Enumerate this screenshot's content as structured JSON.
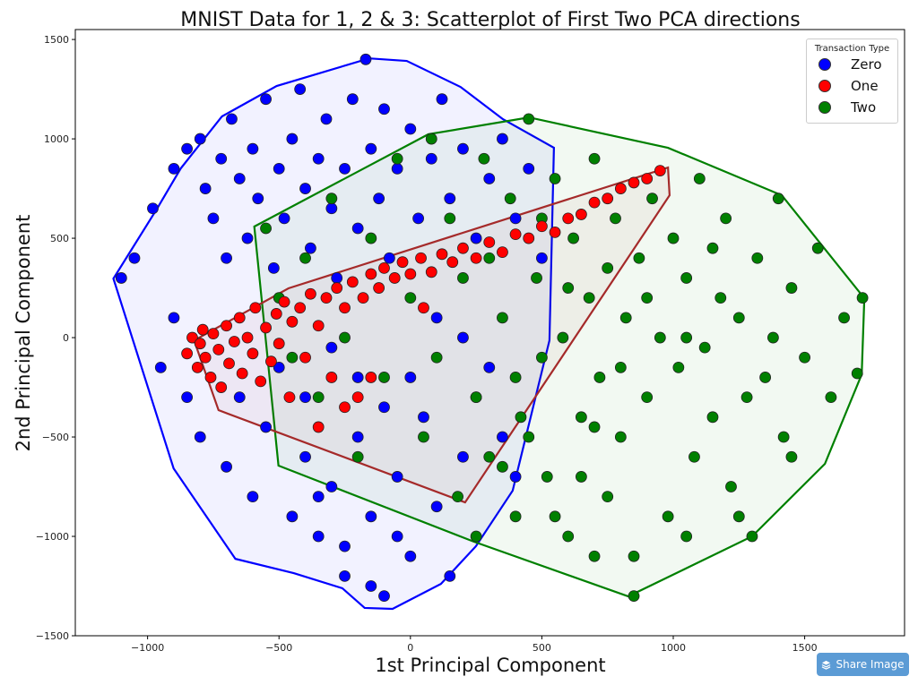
{
  "chart_data": {
    "type": "scatter",
    "title": "MNIST Data for 1, 2 & 3: Scatterplot of First Two PCA directions",
    "xlabel": "1st Principal Component",
    "ylabel": "2nd Principal Component",
    "xlim": [
      -1275,
      1880
    ],
    "ylim": [
      -1500,
      1550
    ],
    "xticks": [
      -1000,
      -500,
      0,
      500,
      1000,
      1500
    ],
    "yticks": [
      -1500,
      -1000,
      -500,
      0,
      500,
      1000,
      1500
    ],
    "grid": false,
    "legend": {
      "title": "Transaction Type",
      "placement": "top-right"
    },
    "series": [
      {
        "name": "Zero",
        "color": "#0000ff",
        "hull_color": "#0000ff",
        "hull": [
          [
            -1130,
            297
          ],
          [
            -962,
            653
          ],
          [
            -874,
            851
          ],
          [
            -717,
            1113
          ],
          [
            -509,
            1266
          ],
          [
            -157,
            1405
          ],
          [
            -14,
            1392
          ],
          [
            191,
            1261
          ],
          [
            352,
            1099
          ],
          [
            546,
            955
          ],
          [
            529,
            -14
          ],
          [
            389,
            -770
          ],
          [
            249,
            -1050
          ],
          [
            116,
            -1239
          ],
          [
            -68,
            -1365
          ],
          [
            -174,
            -1360
          ],
          [
            -259,
            -1261
          ],
          [
            -444,
            -1185
          ],
          [
            -666,
            -1113
          ],
          [
            -901,
            -658
          ]
        ],
        "points": [
          [
            -1100,
            300
          ],
          [
            -1050,
            400
          ],
          [
            -980,
            650
          ],
          [
            -900,
            850
          ],
          [
            -850,
            950
          ],
          [
            -800,
            1000
          ],
          [
            -780,
            750
          ],
          [
            -750,
            600
          ],
          [
            -720,
            900
          ],
          [
            -700,
            400
          ],
          [
            -680,
            1100
          ],
          [
            -650,
            800
          ],
          [
            -620,
            500
          ],
          [
            -600,
            950
          ],
          [
            -580,
            700
          ],
          [
            -550,
            1200
          ],
          [
            -520,
            350
          ],
          [
            -500,
            850
          ],
          [
            -480,
            600
          ],
          [
            -450,
            1000
          ],
          [
            -420,
            1250
          ],
          [
            -400,
            750
          ],
          [
            -380,
            450
          ],
          [
            -350,
            900
          ],
          [
            -320,
            1100
          ],
          [
            -300,
            650
          ],
          [
            -280,
            300
          ],
          [
            -250,
            850
          ],
          [
            -220,
            1200
          ],
          [
            -200,
            550
          ],
          [
            -170,
            1400
          ],
          [
            -150,
            950
          ],
          [
            -120,
            700
          ],
          [
            -100,
            1150
          ],
          [
            -80,
            400
          ],
          [
            -50,
            850
          ],
          [
            0,
            1050
          ],
          [
            30,
            600
          ],
          [
            80,
            900
          ],
          [
            120,
            1200
          ],
          [
            150,
            700
          ],
          [
            200,
            950
          ],
          [
            250,
            500
          ],
          [
            300,
            800
          ],
          [
            350,
            1000
          ],
          [
            400,
            600
          ],
          [
            450,
            850
          ],
          [
            500,
            400
          ],
          [
            -950,
            -150
          ],
          [
            -900,
            100
          ],
          [
            -850,
            -300
          ],
          [
            -800,
            -500
          ],
          [
            -700,
            -650
          ],
          [
            -650,
            -300
          ],
          [
            -600,
            -800
          ],
          [
            -550,
            -450
          ],
          [
            -500,
            -150
          ],
          [
            -450,
            -900
          ],
          [
            -400,
            -600
          ],
          [
            -350,
            -1000
          ],
          [
            -300,
            -750
          ],
          [
            -250,
            -1200
          ],
          [
            -200,
            -500
          ],
          [
            -150,
            -900
          ],
          [
            -100,
            -1300
          ],
          [
            -50,
            -700
          ],
          [
            0,
            -1100
          ],
          [
            50,
            -400
          ],
          [
            100,
            -850
          ],
          [
            150,
            -1200
          ],
          [
            200,
            -600
          ],
          [
            250,
            -300
          ],
          [
            300,
            -150
          ],
          [
            350,
            -500
          ],
          [
            400,
            -700
          ],
          [
            -200,
            -200
          ],
          [
            -100,
            -350
          ],
          [
            0,
            -200
          ],
          [
            100,
            100
          ],
          [
            200,
            0
          ],
          [
            -300,
            -50
          ],
          [
            -400,
            -300
          ],
          [
            -250,
            -1050
          ],
          [
            -150,
            -1250
          ],
          [
            -50,
            -1000
          ],
          [
            -350,
            -800
          ]
        ]
      },
      {
        "name": "Two",
        "color": "#008000",
        "hull_color": "#008000",
        "hull": [
          [
            -594,
            559
          ],
          [
            68,
            1023
          ],
          [
            451,
            1108
          ],
          [
            980,
            955
          ],
          [
            1413,
            716
          ],
          [
            1727,
            198
          ],
          [
            1717,
            -185
          ],
          [
            1577,
            -635
          ],
          [
            1300,
            -1000
          ],
          [
            829,
            -1302
          ],
          [
            242,
            -1027
          ],
          [
            -502,
            -644
          ]
        ],
        "points": [
          [
            -550,
            550
          ],
          [
            -500,
            200
          ],
          [
            -450,
            -100
          ],
          [
            -400,
            400
          ],
          [
            -350,
            -300
          ],
          [
            -300,
            700
          ],
          [
            -250,
            0
          ],
          [
            -200,
            -600
          ],
          [
            -150,
            500
          ],
          [
            -100,
            -200
          ],
          [
            -50,
            900
          ],
          [
            0,
            200
          ],
          [
            50,
            -500
          ],
          [
            80,
            1000
          ],
          [
            100,
            -100
          ],
          [
            150,
            600
          ],
          [
            180,
            -800
          ],
          [
            200,
            300
          ],
          [
            250,
            -300
          ],
          [
            280,
            900
          ],
          [
            300,
            -600
          ],
          [
            350,
            100
          ],
          [
            380,
            700
          ],
          [
            400,
            -900
          ],
          [
            420,
            -400
          ],
          [
            450,
            1100
          ],
          [
            480,
            300
          ],
          [
            500,
            -100
          ],
          [
            520,
            -700
          ],
          [
            550,
            800
          ],
          [
            580,
            0
          ],
          [
            600,
            -1000
          ],
          [
            620,
            500
          ],
          [
            650,
            -400
          ],
          [
            680,
            200
          ],
          [
            700,
            900
          ],
          [
            720,
            -200
          ],
          [
            750,
            -800
          ],
          [
            780,
            600
          ],
          [
            800,
            -500
          ],
          [
            820,
            100
          ],
          [
            850,
            -1100
          ],
          [
            870,
            400
          ],
          [
            900,
            -300
          ],
          [
            920,
            700
          ],
          [
            950,
            0
          ],
          [
            980,
            -900
          ],
          [
            1000,
            500
          ],
          [
            1020,
            -150
          ],
          [
            1050,
            300
          ],
          [
            1080,
            -600
          ],
          [
            1100,
            800
          ],
          [
            1120,
            -50
          ],
          [
            1150,
            -400
          ],
          [
            1180,
            200
          ],
          [
            1200,
            600
          ],
          [
            1220,
            -750
          ],
          [
            1250,
            100
          ],
          [
            1280,
            -300
          ],
          [
            1300,
            -1000
          ],
          [
            1320,
            400
          ],
          [
            1350,
            -200
          ],
          [
            1380,
            0
          ],
          [
            1400,
            700
          ],
          [
            1420,
            -500
          ],
          [
            1450,
            250
          ],
          [
            1500,
            -100
          ],
          [
            1550,
            450
          ],
          [
            1600,
            -300
          ],
          [
            1650,
            100
          ],
          [
            1720,
            200
          ],
          [
            1700,
            -180
          ],
          [
            1450,
            -600
          ],
          [
            1250,
            -900
          ],
          [
            1050,
            -1000
          ],
          [
            850,
            -1300
          ],
          [
            700,
            -1100
          ],
          [
            650,
            -700
          ],
          [
            550,
            -900
          ],
          [
            450,
            -500
          ],
          [
            350,
            -650
          ],
          [
            250,
            -1000
          ],
          [
            300,
            400
          ],
          [
            600,
            250
          ],
          [
            750,
            350
          ],
          [
            900,
            200
          ],
          [
            1050,
            0
          ],
          [
            1150,
            450
          ],
          [
            800,
            -150
          ],
          [
            700,
            -450
          ],
          [
            500,
            600
          ],
          [
            400,
            -200
          ]
        ]
      },
      {
        "name": "One",
        "color": "#ff0000",
        "hull_color": "#a52a2a",
        "hull": [
          [
            -823,
            -14
          ],
          [
            -464,
            248
          ],
          [
            980,
            856
          ],
          [
            986,
            716
          ],
          [
            208,
            -829
          ],
          [
            -730,
            -365
          ]
        ],
        "points": [
          [
            -850,
            -80
          ],
          [
            -830,
            0
          ],
          [
            -810,
            -150
          ],
          [
            -800,
            -30
          ],
          [
            -790,
            40
          ],
          [
            -780,
            -100
          ],
          [
            -760,
            -200
          ],
          [
            -750,
            20
          ],
          [
            -730,
            -60
          ],
          [
            -720,
            -250
          ],
          [
            -700,
            60
          ],
          [
            -690,
            -130
          ],
          [
            -670,
            -20
          ],
          [
            -650,
            100
          ],
          [
            -640,
            -180
          ],
          [
            -620,
            0
          ],
          [
            -600,
            -80
          ],
          [
            -590,
            150
          ],
          [
            -570,
            -220
          ],
          [
            -550,
            50
          ],
          [
            -530,
            -120
          ],
          [
            -510,
            120
          ],
          [
            -500,
            -30
          ],
          [
            -480,
            180
          ],
          [
            -460,
            -300
          ],
          [
            -450,
            80
          ],
          [
            -420,
            150
          ],
          [
            -400,
            -100
          ],
          [
            -380,
            220
          ],
          [
            -350,
            60
          ],
          [
            -320,
            200
          ],
          [
            -300,
            -200
          ],
          [
            -280,
            250
          ],
          [
            -250,
            150
          ],
          [
            -220,
            280
          ],
          [
            -200,
            -300
          ],
          [
            -180,
            200
          ],
          [
            -150,
            320
          ],
          [
            -120,
            250
          ],
          [
            -100,
            350
          ],
          [
            -60,
            300
          ],
          [
            -30,
            380
          ],
          [
            0,
            320
          ],
          [
            40,
            400
          ],
          [
            80,
            330
          ],
          [
            120,
            420
          ],
          [
            160,
            380
          ],
          [
            200,
            450
          ],
          [
            250,
            400
          ],
          [
            300,
            480
          ],
          [
            350,
            430
          ],
          [
            400,
            520
          ],
          [
            450,
            500
          ],
          [
            500,
            560
          ],
          [
            550,
            530
          ],
          [
            600,
            600
          ],
          [
            650,
            620
          ],
          [
            700,
            680
          ],
          [
            750,
            700
          ],
          [
            800,
            750
          ],
          [
            850,
            780
          ],
          [
            900,
            800
          ],
          [
            950,
            840
          ],
          [
            -350,
            -450
          ],
          [
            -250,
            -350
          ],
          [
            -150,
            -200
          ],
          [
            50,
            150
          ]
        ]
      }
    ]
  },
  "legend_entries": [
    "Zero",
    "One",
    "Two"
  ],
  "share_button": {
    "label": "Share Image",
    "icon": "layers-icon"
  }
}
